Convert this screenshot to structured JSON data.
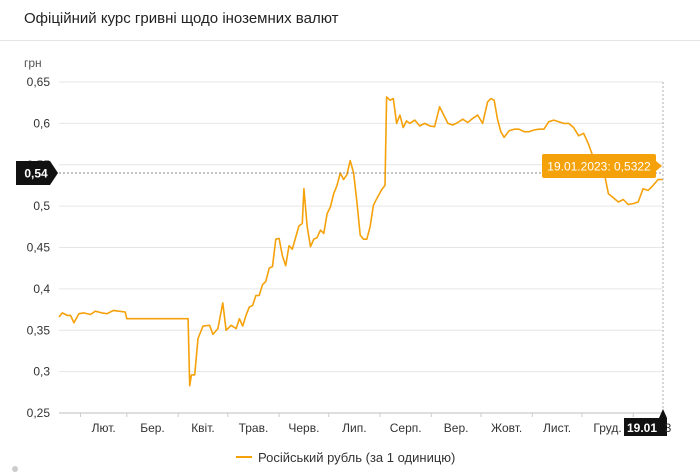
{
  "header": {
    "title": "Офіційний курс гривні щодо іноземних валют"
  },
  "colors": {
    "series": "#f5a10a",
    "badge": "#f5a10a",
    "marker_bg": "#111111",
    "grid": "#e6e6e6"
  },
  "chart_data": {
    "type": "line",
    "title": "Офіційний курс гривні щодо іноземних валют",
    "ylabel": "грн",
    "xlabel": "",
    "ylim": [
      0.25,
      0.65
    ],
    "yticks": [
      "0,65",
      "0,6",
      "0,55",
      "0,5",
      "0,45",
      "0,4",
      "0,35",
      "0,3",
      "0,25"
    ],
    "ytick_values": [
      0.65,
      0.6,
      0.55,
      0.5,
      0.45,
      0.4,
      0.35,
      0.3,
      0.25
    ],
    "xticks": [
      "Лют.",
      "Бер.",
      "Квіт.",
      "Трав.",
      "Черв.",
      "Лип.",
      "Серп.",
      "Вер.",
      "Жовт.",
      "Лист.",
      "Груд."
    ],
    "x_start": "2022-01-19",
    "x_end": "2023-01-19",
    "crosshair": {
      "y_label": "0,54",
      "y_value": 0.54,
      "x_label": "19.01",
      "x_partial_label": "3"
    },
    "tooltip": "19.01.2023: 0,5322",
    "legend": "Російський рубль (за 1 одиницю)",
    "series": [
      {
        "name": "Російський рубль (за 1 одиницю)",
        "points": [
          [
            "2022-01-19",
            0.366
          ],
          [
            "2022-01-21",
            0.371
          ],
          [
            "2022-01-24",
            0.368
          ],
          [
            "2022-01-26",
            0.368
          ],
          [
            "2022-01-28",
            0.359
          ],
          [
            "2022-01-31",
            0.37
          ],
          [
            "2022-02-03",
            0.371
          ],
          [
            "2022-02-07",
            0.369
          ],
          [
            "2022-02-10",
            0.373
          ],
          [
            "2022-02-14",
            0.371
          ],
          [
            "2022-02-17",
            0.37
          ],
          [
            "2022-02-21",
            0.374
          ],
          [
            "2022-02-24",
            0.373
          ],
          [
            "2022-02-28",
            0.372
          ],
          [
            "2022-03-01",
            0.364
          ],
          [
            "2022-03-10",
            0.364
          ],
          [
            "2022-03-20",
            0.364
          ],
          [
            "2022-03-31",
            0.364
          ],
          [
            "2022-04-07",
            0.364
          ],
          [
            "2022-04-08",
            0.283
          ],
          [
            "2022-04-09",
            0.296
          ],
          [
            "2022-04-11",
            0.296
          ],
          [
            "2022-04-13",
            0.34
          ],
          [
            "2022-04-16",
            0.355
          ],
          [
            "2022-04-20",
            0.356
          ],
          [
            "2022-04-22",
            0.345
          ],
          [
            "2022-04-25",
            0.352
          ],
          [
            "2022-04-28",
            0.383
          ],
          [
            "2022-04-30",
            0.35
          ],
          [
            "2022-05-03",
            0.356
          ],
          [
            "2022-05-06",
            0.352
          ],
          [
            "2022-05-08",
            0.364
          ],
          [
            "2022-05-10",
            0.355
          ],
          [
            "2022-05-12",
            0.368
          ],
          [
            "2022-05-14",
            0.378
          ],
          [
            "2022-05-16",
            0.38
          ],
          [
            "2022-05-18",
            0.392
          ],
          [
            "2022-05-20",
            0.392
          ],
          [
            "2022-05-22",
            0.405
          ],
          [
            "2022-05-24",
            0.409
          ],
          [
            "2022-05-26",
            0.425
          ],
          [
            "2022-05-28",
            0.427
          ],
          [
            "2022-05-30",
            0.46
          ],
          [
            "2022-06-01",
            0.461
          ],
          [
            "2022-06-03",
            0.44
          ],
          [
            "2022-06-05",
            0.428
          ],
          [
            "2022-06-07",
            0.452
          ],
          [
            "2022-06-09",
            0.448
          ],
          [
            "2022-06-11",
            0.462
          ],
          [
            "2022-06-13",
            0.476
          ],
          [
            "2022-06-15",
            0.479
          ],
          [
            "2022-06-16",
            0.521
          ],
          [
            "2022-06-18",
            0.475
          ],
          [
            "2022-06-20",
            0.451
          ],
          [
            "2022-06-22",
            0.46
          ],
          [
            "2022-06-24",
            0.462
          ],
          [
            "2022-06-26",
            0.471
          ],
          [
            "2022-06-28",
            0.467
          ],
          [
            "2022-06-30",
            0.491
          ],
          [
            "2022-07-02",
            0.499
          ],
          [
            "2022-07-04",
            0.515
          ],
          [
            "2022-07-06",
            0.525
          ],
          [
            "2022-07-08",
            0.54
          ],
          [
            "2022-07-10",
            0.532
          ],
          [
            "2022-07-12",
            0.538
          ],
          [
            "2022-07-14",
            0.555
          ],
          [
            "2022-07-16",
            0.54
          ],
          [
            "2022-07-18",
            0.505
          ],
          [
            "2022-07-20",
            0.465
          ],
          [
            "2022-07-22",
            0.46
          ],
          [
            "2022-07-24",
            0.46
          ],
          [
            "2022-07-26",
            0.475
          ],
          [
            "2022-07-28",
            0.501
          ],
          [
            "2022-07-30",
            0.509
          ],
          [
            "2022-08-02",
            0.52
          ],
          [
            "2022-08-04",
            0.525
          ],
          [
            "2022-08-05",
            0.632
          ],
          [
            "2022-08-07",
            0.628
          ],
          [
            "2022-08-09",
            0.63
          ],
          [
            "2022-08-11",
            0.6
          ],
          [
            "2022-08-13",
            0.61
          ],
          [
            "2022-08-15",
            0.595
          ],
          [
            "2022-08-17",
            0.603
          ],
          [
            "2022-08-19",
            0.6
          ],
          [
            "2022-08-22",
            0.604
          ],
          [
            "2022-08-25",
            0.597
          ],
          [
            "2022-08-28",
            0.6
          ],
          [
            "2022-08-31",
            0.597
          ],
          [
            "2022-09-03",
            0.596
          ],
          [
            "2022-09-06",
            0.62
          ],
          [
            "2022-09-08",
            0.612
          ],
          [
            "2022-09-11",
            0.6
          ],
          [
            "2022-09-14",
            0.598
          ],
          [
            "2022-09-17",
            0.601
          ],
          [
            "2022-09-20",
            0.605
          ],
          [
            "2022-09-23",
            0.601
          ],
          [
            "2022-09-26",
            0.606
          ],
          [
            "2022-09-29",
            0.61
          ],
          [
            "2022-10-02",
            0.6
          ],
          [
            "2022-10-05",
            0.626
          ],
          [
            "2022-10-07",
            0.63
          ],
          [
            "2022-10-09",
            0.628
          ],
          [
            "2022-10-11",
            0.605
          ],
          [
            "2022-10-13",
            0.59
          ],
          [
            "2022-10-15",
            0.583
          ],
          [
            "2022-10-18",
            0.591
          ],
          [
            "2022-10-21",
            0.593
          ],
          [
            "2022-10-24",
            0.593
          ],
          [
            "2022-10-27",
            0.59
          ],
          [
            "2022-10-30",
            0.59
          ],
          [
            "2022-11-02",
            0.592
          ],
          [
            "2022-11-05",
            0.593
          ],
          [
            "2022-11-08",
            0.593
          ],
          [
            "2022-11-11",
            0.602
          ],
          [
            "2022-11-14",
            0.604
          ],
          [
            "2022-11-17",
            0.602
          ],
          [
            "2022-11-20",
            0.6
          ],
          [
            "2022-11-23",
            0.6
          ],
          [
            "2022-11-26",
            0.595
          ],
          [
            "2022-11-29",
            0.585
          ],
          [
            "2022-12-02",
            0.588
          ],
          [
            "2022-12-05",
            0.575
          ],
          [
            "2022-12-08",
            0.558
          ],
          [
            "2022-12-11",
            0.55
          ],
          [
            "2022-12-14",
            0.545
          ],
          [
            "2022-12-17",
            0.515
          ],
          [
            "2022-12-20",
            0.51
          ],
          [
            "2022-12-23",
            0.505
          ],
          [
            "2022-12-26",
            0.508
          ],
          [
            "2022-12-29",
            0.502
          ],
          [
            "2023-01-01",
            0.503
          ],
          [
            "2023-01-04",
            0.505
          ],
          [
            "2023-01-07",
            0.521
          ],
          [
            "2023-01-10",
            0.519
          ],
          [
            "2023-01-13",
            0.525
          ],
          [
            "2023-01-16",
            0.532
          ],
          [
            "2023-01-19",
            0.5322
          ]
        ]
      }
    ]
  }
}
